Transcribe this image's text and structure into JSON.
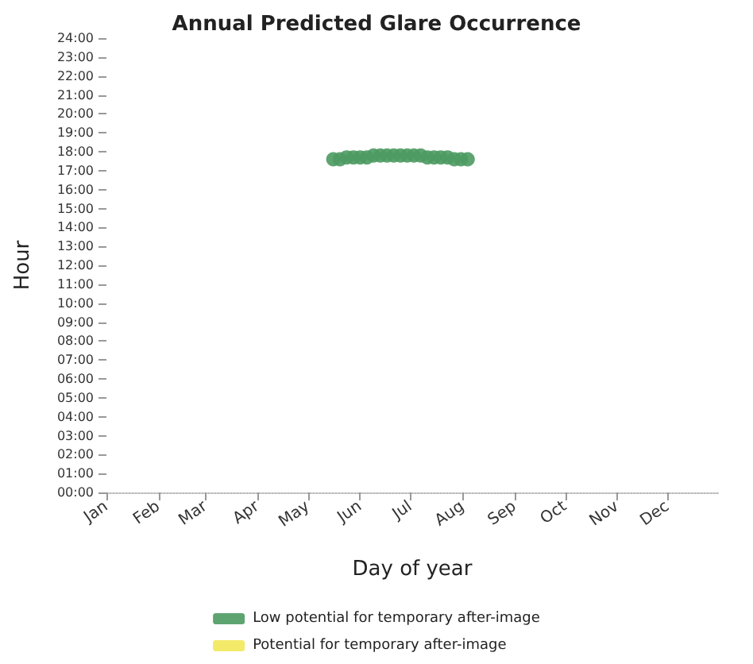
{
  "chart_data": {
    "type": "scatter",
    "title": "Annual Predicted Glare Occurrence",
    "xlabel": "Day of year",
    "ylabel": "Hour",
    "xlim": [
      "--01-01",
      "--12-31"
    ],
    "xticks": [
      {
        "value": "--01-01",
        "label": "Jan"
      },
      {
        "value": "--02-01",
        "label": "Feb"
      },
      {
        "value": "--03-01",
        "label": "Mar"
      },
      {
        "value": "--04-01",
        "label": "Apr"
      },
      {
        "value": "--05-01",
        "label": "May"
      },
      {
        "value": "--06-01",
        "label": "Jun"
      },
      {
        "value": "--07-01",
        "label": "Jul"
      },
      {
        "value": "--08-01",
        "label": "Aug"
      },
      {
        "value": "--09-01",
        "label": "Sep"
      },
      {
        "value": "--10-01",
        "label": "Oct"
      },
      {
        "value": "--11-01",
        "label": "Nov"
      },
      {
        "value": "--12-01",
        "label": "Dec"
      }
    ],
    "ylim": [
      0,
      24
    ],
    "yticks": [
      {
        "value": 0,
        "label": "00:00"
      },
      {
        "value": 1,
        "label": "01:00"
      },
      {
        "value": 2,
        "label": "02:00"
      },
      {
        "value": 3,
        "label": "03:00"
      },
      {
        "value": 4,
        "label": "04:00"
      },
      {
        "value": 5,
        "label": "05:00"
      },
      {
        "value": 6,
        "label": "06:00"
      },
      {
        "value": 7,
        "label": "07:00"
      },
      {
        "value": 8,
        "label": "08:00"
      },
      {
        "value": 9,
        "label": "09:00"
      },
      {
        "value": 10,
        "label": "10:00"
      },
      {
        "value": 11,
        "label": "11:00"
      },
      {
        "value": 12,
        "label": "12:00"
      },
      {
        "value": 13,
        "label": "13:00"
      },
      {
        "value": 14,
        "label": "14:00"
      },
      {
        "value": 15,
        "label": "15:00"
      },
      {
        "value": 16,
        "label": "16:00"
      },
      {
        "value": 17,
        "label": "17:00"
      },
      {
        "value": 18,
        "label": "18:00"
      },
      {
        "value": 19,
        "label": "19:00"
      },
      {
        "value": 20,
        "label": "20:00"
      },
      {
        "value": 21,
        "label": "21:00"
      },
      {
        "value": 22,
        "label": "22:00"
      },
      {
        "value": 23,
        "label": "23:00"
      },
      {
        "value": 24,
        "label": "24:00"
      }
    ],
    "series": [
      {
        "name": "Low potential for temporary after-image",
        "color": "#4c9a62",
        "x": [
          "--05-16",
          "--05-20",
          "--05-24",
          "--05-28",
          "--06-01",
          "--06-05",
          "--06-09",
          "--06-13",
          "--06-17",
          "--06-21",
          "--06-25",
          "--06-29",
          "--07-03",
          "--07-07",
          "--07-11",
          "--07-15",
          "--07-19",
          "--07-23",
          "--07-27",
          "--07-31",
          "--08-04"
        ],
        "values": [
          17.6,
          17.6,
          17.7,
          17.7,
          17.7,
          17.7,
          17.8,
          17.8,
          17.8,
          17.8,
          17.8,
          17.8,
          17.8,
          17.8,
          17.7,
          17.7,
          17.7,
          17.7,
          17.6,
          17.6,
          17.6
        ]
      },
      {
        "name": "Potential for temporary after-image",
        "color": "#f2e85a"
      }
    ],
    "grid": false,
    "legend": "bottom",
    "marker": "circle"
  }
}
